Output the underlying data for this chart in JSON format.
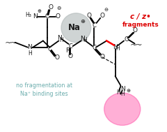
{
  "bg_color": "#ffffff",
  "na_circle_color": "#b0b8b8",
  "na_circle_alpha": 0.6,
  "pink_glow_color": "#ff1a8c",
  "text_color_dark": "#1a1a1a",
  "text_color_teal": "#6aacac",
  "text_color_red": "#dd0000",
  "label_c_z": "c / z•",
  "label_fragments": "fragments",
  "label_no_frag": "no fragmentation at\nNa⁺ binding sites",
  "label_na": "Na",
  "figsize": [
    2.4,
    1.89
  ],
  "dpi": 100
}
